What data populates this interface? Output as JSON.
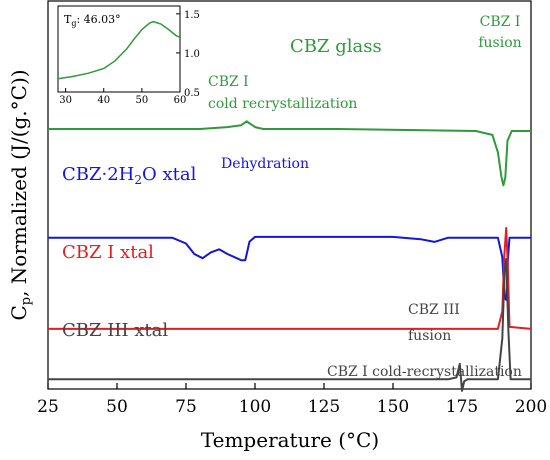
{
  "chart_data": [
    {
      "type": "line",
      "title": "",
      "xlabel": "Temperature (°C)",
      "ylabel_parts": [
        "C",
        "p",
        ", Normalized (J/(g.°C))"
      ],
      "xlim": [
        25,
        200
      ],
      "x_ticks": [
        25,
        50,
        75,
        100,
        125,
        150,
        175,
        200
      ],
      "y_ticks": [],
      "grid": false,
      "series": [
        {
          "name": "CBZ glass",
          "label_text": "CBZ glass",
          "color": "#2e9a3a",
          "baseline": 0.33,
          "points": [
            [
              25,
              0.33
            ],
            [
              80,
              0.33
            ],
            [
              90,
              0.325
            ],
            [
              95,
              0.32
            ],
            [
              97,
              0.31
            ],
            [
              100,
              0.325
            ],
            [
              103,
              0.33
            ],
            [
              130,
              0.33
            ],
            [
              180,
              0.335
            ],
            [
              186,
              0.345
            ],
            [
              188,
              0.39
            ],
            [
              189.3,
              0.455
            ],
            [
              190,
              0.475
            ],
            [
              190.7,
              0.455
            ],
            [
              191.5,
              0.36
            ],
            [
              193,
              0.335
            ],
            [
              200,
              0.335
            ]
          ]
        },
        {
          "name": "CBZ·2H2O xtal",
          "label_parts": [
            "CBZ·2H",
            "2",
            "O xtal"
          ],
          "color": "#1414e0",
          "baseline": 0.61,
          "points": [
            [
              25,
              0.61
            ],
            [
              70,
              0.61
            ],
            [
              75,
              0.625
            ],
            [
              78,
              0.652
            ],
            [
              81,
              0.663
            ],
            [
              84,
              0.648
            ],
            [
              87,
              0.64
            ],
            [
              90,
              0.652
            ],
            [
              95,
              0.668
            ],
            [
              96.5,
              0.668
            ],
            [
              98,
              0.62
            ],
            [
              100,
              0.608
            ],
            [
              110,
              0.608
            ],
            [
              150,
              0.608
            ],
            [
              160,
              0.614
            ],
            [
              165,
              0.621
            ],
            [
              170,
              0.61
            ],
            [
              188,
              0.61
            ],
            [
              189.6,
              0.66
            ],
            [
              190.4,
              0.765
            ],
            [
              191,
              0.77
            ],
            [
              191.6,
              0.67
            ],
            [
              192.2,
              0.61
            ],
            [
              200,
              0.61
            ]
          ]
        },
        {
          "name": "CBZ I xtal",
          "label_text": "CBZ I xtal",
          "color": "#e02020",
          "baseline": 0.84,
          "points": [
            [
              25,
              0.845
            ],
            [
              100,
              0.845
            ],
            [
              188,
              0.845
            ],
            [
              189.6,
              0.8
            ],
            [
              190.3,
              0.66
            ],
            [
              191,
              0.585
            ],
            [
              191.6,
              0.68
            ],
            [
              192.2,
              0.84
            ],
            [
              200,
              0.845
            ]
          ]
        },
        {
          "name": "CBZ III xtal",
          "label_text": "CBZ III xtal",
          "color": "#444444",
          "baseline": 0.98,
          "points": [
            [
              25,
              0.975
            ],
            [
              150,
              0.975
            ],
            [
              170,
              0.975
            ],
            [
              173,
              0.97
            ],
            [
              174.2,
              0.935
            ],
            [
              175,
              1.005
            ],
            [
              175.8,
              0.98
            ],
            [
              177,
              0.975
            ],
            [
              188,
              0.975
            ],
            [
              189.6,
              0.87
            ],
            [
              190.4,
              0.7
            ],
            [
              191,
              0.665
            ],
            [
              191.8,
              0.85
            ],
            [
              192.6,
              0.975
            ],
            [
              200,
              0.975
            ]
          ]
        }
      ],
      "annotations": {
        "cold_recryst_line1": "CBZ I",
        "cold_recryst_line2": "cold recrystallization",
        "fusion_line1": "CBZ I",
        "fusion_line2": "fusion",
        "dehydration": "Dehydration",
        "iii_fusion_line1": "CBZ III",
        "iii_fusion_line2": "fusion",
        "iii_cold_recryst": "CBZ I cold-recrystallization"
      }
    },
    {
      "type": "line",
      "title": "",
      "inset_label_parts": [
        "T",
        "g",
        ": 46.03°"
      ],
      "xlim": [
        28,
        60
      ],
      "ylim": [
        0.5,
        1.6
      ],
      "x_ticks": [
        30,
        40,
        50,
        60
      ],
      "y_ticks": [
        0.5,
        1.0,
        1.5
      ],
      "y_tick_labels": [
        "0.5",
        "1.0",
        "1.5"
      ],
      "series": [
        {
          "color": "#2e9a3a",
          "points": [
            [
              28,
              0.67
            ],
            [
              32,
              0.7
            ],
            [
              36,
              0.74
            ],
            [
              40,
              0.8
            ],
            [
              43,
              0.9
            ],
            [
              46,
              1.05
            ],
            [
              48,
              1.18
            ],
            [
              50,
              1.3
            ],
            [
              52,
              1.38
            ],
            [
              53,
              1.4
            ],
            [
              55,
              1.37
            ],
            [
              57,
              1.3
            ],
            [
              59,
              1.22
            ],
            [
              60,
              1.2
            ]
          ]
        }
      ]
    }
  ]
}
